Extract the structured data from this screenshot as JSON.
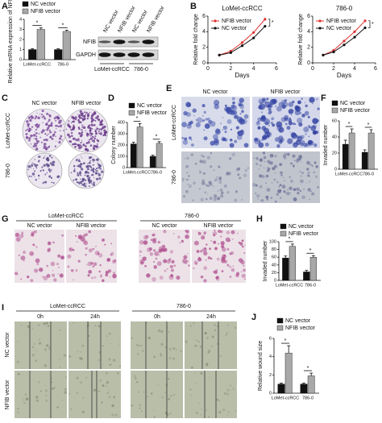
{
  "panels": [
    {
      "letter": "A",
      "chart": {
        "type": "bar",
        "y_label": "Relative mRNA expression of NFIB",
        "categories": [
          "LoMet-ccRCC",
          "786-0"
        ],
        "series": [
          {
            "name": "NC vector",
            "color": "#111111",
            "values": [
              1,
              1
            ],
            "errors": [
              0.08,
              0.08
            ]
          },
          {
            "name": "NFIB vector",
            "color": "#a8a8a8",
            "values": [
              3.0,
              2.8
            ],
            "errors": [
              0.15,
              0.12
            ]
          }
        ],
        "ylim": [
          0,
          4
        ],
        "yticks": [
          0,
          1,
          2,
          3,
          4
        ],
        "annotations": [
          "*",
          "*"
        ]
      },
      "blot": {
        "columns": [
          "NC vector",
          "NFIB vector",
          "NC vector",
          "NFIB vector"
        ],
        "rows": [
          "NFIB",
          "GAPDH"
        ],
        "groups": [
          "LoMet-ccRCC",
          "786-0"
        ]
      }
    },
    {
      "letter": "B",
      "charts": [
        {
          "type": "line",
          "title": "LoMet-ccRCC",
          "x_label": "Days",
          "y_label": "Relative fold change",
          "x": [
            1,
            2,
            3,
            4,
            5
          ],
          "series": [
            {
              "name": "NFIB vector",
              "color": "#e03030",
              "values": [
                1,
                1.5,
                2.6,
                3.9,
                5.6
              ]
            },
            {
              "name": "NC vector",
              "color": "#111111",
              "values": [
                1,
                1.3,
                2.2,
                3.2,
                4.7
              ]
            }
          ],
          "xlim": [
            0,
            6
          ],
          "xticks": [
            0,
            2,
            4,
            6
          ],
          "ylim": [
            0,
            6
          ],
          "yticks": [
            0,
            2,
            4,
            6
          ],
          "annotation": "*"
        },
        {
          "type": "line",
          "title": "786-0",
          "x_label": "Days",
          "y_label": "Relative fold change",
          "x": [
            1,
            2,
            3,
            4,
            5
          ],
          "series": [
            {
              "name": "NFIB vector",
              "color": "#e03030",
              "values": [
                1,
                1.6,
                2.8,
                4.0,
                5.4
              ]
            },
            {
              "name": "NC vector",
              "color": "#111111",
              "values": [
                1,
                1.4,
                2.3,
                3.3,
                4.5
              ]
            }
          ],
          "xlim": [
            0,
            6
          ],
          "xticks": [
            0,
            2,
            4,
            6
          ],
          "ylim": [
            0,
            6
          ],
          "yticks": [
            0,
            2,
            4,
            6
          ],
          "annotation": "*"
        }
      ]
    },
    {
      "letter": "C",
      "columns": [
        "NC vector",
        "NFIB vector"
      ],
      "rows": [
        "LoMet-ccRCC",
        "786-0"
      ]
    },
    {
      "letter": "D",
      "chart": {
        "type": "bar",
        "y_label": "Colony number",
        "categories": [
          "LoMet-ccRCC",
          "786-0"
        ],
        "series": [
          {
            "name": "NC vector",
            "color": "#111111",
            "values": [
              210,
              100
            ],
            "errors": [
              15,
              10
            ]
          },
          {
            "name": "NFIB vector",
            "color": "#a8a8a8",
            "values": [
              360,
              215
            ],
            "errors": [
              30,
              15
            ]
          }
        ],
        "ylim": [
          0,
          400
        ],
        "yticks": [
          0,
          100,
          200,
          300,
          400
        ],
        "annotations": [
          "*",
          "*"
        ]
      }
    },
    {
      "letter": "E",
      "columns": [
        "NC vector",
        "NFIB vector"
      ],
      "rows": [
        "LoMet-ccRCC",
        "786-0"
      ]
    },
    {
      "letter": "F",
      "chart": {
        "type": "bar",
        "y_label": "Invaded number",
        "categories": [
          "LoMet-ccRCC",
          "786-0"
        ],
        "series": [
          {
            "name": "NC vector",
            "color": "#111111",
            "values": [
              31,
              21
            ],
            "errors": [
              5,
              3
            ]
          },
          {
            "name": "NFIB vector",
            "color": "#a8a8a8",
            "values": [
              45,
              45
            ],
            "errors": [
              5,
              4
            ]
          }
        ],
        "ylim": [
          0,
          60
        ],
        "yticks": [
          0,
          20,
          40,
          60
        ],
        "annotations": [
          "*",
          "*"
        ]
      }
    },
    {
      "letter": "G",
      "groups": [
        "LoMet-ccRCC",
        "786-0"
      ],
      "columns": [
        "NC vector",
        "NFIB vector",
        "NC vector",
        "NFIB vector"
      ]
    },
    {
      "letter": "H",
      "chart": {
        "type": "bar",
        "y_label": "Invaded number",
        "categories": [
          "LoMet-ccRCC",
          "786-0"
        ],
        "series": [
          {
            "name": "NC vector",
            "color": "#111111",
            "values": [
              58,
              22
            ],
            "errors": [
              5,
              4
            ]
          },
          {
            "name": "NFIB vector",
            "color": "#a8a8a8",
            "values": [
              88,
              60
            ],
            "errors": [
              6,
              4
            ]
          }
        ],
        "ylim": [
          0,
          100
        ],
        "yticks": [
          0,
          20,
          40,
          60,
          80,
          100
        ],
        "annotations": [
          "*",
          "*"
        ]
      }
    },
    {
      "letter": "I",
      "groups": [
        "LoMet-ccRCC",
        "786-0"
      ],
      "columns": [
        "0h",
        "24h",
        "0h",
        "24h"
      ],
      "rows": [
        "NC vector",
        "NFIB vector"
      ]
    },
    {
      "letter": "J",
      "chart": {
        "type": "bar",
        "y_label": "Relative wound size",
        "categories": [
          "LoMet-ccRCC",
          "786-0"
        ],
        "series": [
          {
            "name": "NC vector",
            "color": "#111111",
            "values": [
              1,
              1
            ],
            "errors": [
              0.1,
              0.1
            ]
          },
          {
            "name": "NFIB vector",
            "color": "#a8a8a8",
            "values": [
              4.4,
              1.9
            ],
            "errors": [
              0.8,
              0.3
            ]
          }
        ],
        "ylim": [
          0,
          6
        ],
        "yticks": [
          0,
          2,
          4,
          6
        ],
        "annotations": [
          "*",
          "*"
        ]
      }
    }
  ]
}
